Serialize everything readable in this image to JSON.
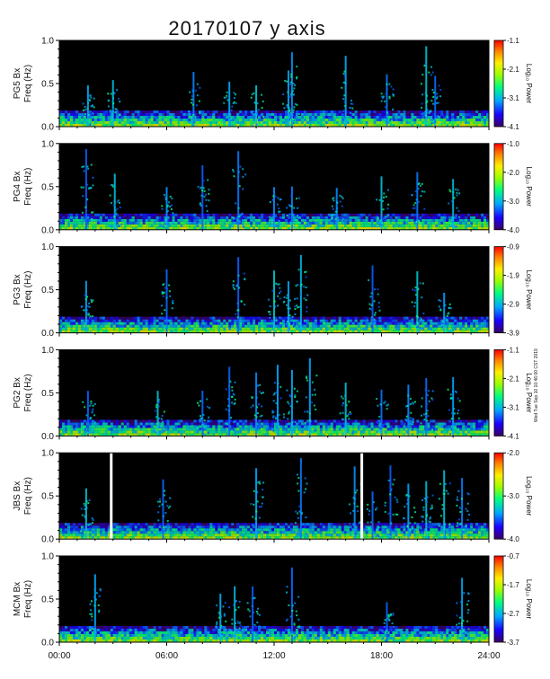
{
  "title": "20170107 y axis",
  "timestamp_note": "Wed Tue Sep 10 10:46:00 CST 2019",
  "colors": {
    "background": "#000000",
    "colormap": [
      "#3a0060",
      "#1a00ff",
      "#00a8ff",
      "#00ff80",
      "#9aff00",
      "#ffee00",
      "#ff8800",
      "#ff0000"
    ]
  },
  "chart_data": [
    {
      "type": "heatmap",
      "station": "PG5",
      "ylabel_top": "PG5  Bx",
      "ylabel_bottom": "Freq (Hz)",
      "y_ticks": [
        "0.0",
        "0.5",
        "1.0"
      ],
      "ylim": [
        0,
        1.0
      ],
      "colorbar": {
        "label": "Log₁₀ Power",
        "ticks": [
          "-1.1",
          "-2.1",
          "-3.1",
          "-4.1"
        ],
        "range": [
          -4.1,
          -1.1
        ]
      },
      "bursts": [
        1.6,
        3.0,
        7.5,
        9.5,
        11.0,
        12.8,
        13.0,
        16.0,
        18.3,
        20.5,
        21.0
      ],
      "gaps": []
    },
    {
      "type": "heatmap",
      "station": "PG4",
      "ylabel_top": "PG4  Bx",
      "ylabel_bottom": "Freq (Hz)",
      "y_ticks": [
        "0.0",
        "0.5",
        "1.0"
      ],
      "ylim": [
        0,
        1.0
      ],
      "colorbar": {
        "label": "Log₁₀ Power",
        "ticks": [
          "-1.0",
          "-2.0",
          "-3.0",
          "-4.0"
        ],
        "range": [
          -4.0,
          -1.0
        ]
      },
      "bursts": [
        1.5,
        3.1,
        6.0,
        8.0,
        10.0,
        12.0,
        13.0,
        15.5,
        18.0,
        20.0,
        22.0
      ],
      "gaps": []
    },
    {
      "type": "heatmap",
      "station": "PG3",
      "ylabel_top": "PG3  Bx",
      "ylabel_bottom": "Freq (Hz)",
      "y_ticks": [
        "0.0",
        "0.5",
        "1.0"
      ],
      "ylim": [
        0,
        1.0
      ],
      "colorbar": {
        "label": "Log₁₀ Power",
        "ticks": [
          "-0.9",
          "-1.9",
          "-2.9",
          "-3.9"
        ],
        "range": [
          -3.9,
          -0.9
        ]
      },
      "bursts": [
        1.5,
        6.0,
        10.0,
        12.0,
        12.8,
        13.5,
        17.5,
        20.0,
        21.5
      ],
      "gaps": []
    },
    {
      "type": "heatmap",
      "station": "PG2",
      "ylabel_top": "PG2  Bx",
      "ylabel_bottom": "Freq (Hz)",
      "y_ticks": [
        "0.0",
        "0.5",
        "1.0"
      ],
      "ylim": [
        0,
        1.0
      ],
      "colorbar": {
        "label": "Log₁₀ Power",
        "ticks": [
          "-1.1",
          "-2.1",
          "-3.1",
          "-4.1"
        ],
        "range": [
          -4.1,
          -1.1
        ]
      },
      "bursts": [
        1.6,
        5.5,
        8.0,
        9.5,
        11.0,
        12.2,
        13.0,
        14.0,
        16.0,
        18.0,
        19.5,
        20.5,
        22.0
      ],
      "gaps": []
    },
    {
      "type": "heatmap",
      "station": "JBS",
      "ylabel_top": "JBS  Bx",
      "ylabel_bottom": "Freq (Hz)",
      "y_ticks": [
        "0.0",
        "0.5",
        "1.0"
      ],
      "ylim": [
        0,
        1.0
      ],
      "colorbar": {
        "label": "Log₁₀ Power",
        "ticks": [
          "-2.0",
          "-3.0",
          "-4.0"
        ],
        "range": [
          -4.0,
          -2.0
        ]
      },
      "bursts": [
        1.5,
        5.8,
        11.0,
        13.5,
        16.5,
        17.5,
        18.5,
        19.5,
        20.5,
        21.5,
        22.5
      ],
      "gaps": [
        2.9,
        16.9
      ]
    },
    {
      "type": "heatmap",
      "station": "MCM",
      "ylabel_top": "MCM  Bx",
      "ylabel_bottom": "Freq (Hz)",
      "y_ticks": [
        "0.0",
        "0.5",
        "1.0"
      ],
      "ylim": [
        0,
        1.0
      ],
      "colorbar": {
        "label": "Log₁₀ Power",
        "ticks": [
          "-0.7",
          "-1.7",
          "-2.7",
          "-3.7"
        ],
        "range": [
          -3.7,
          -0.7
        ]
      },
      "bursts": [
        2.0,
        9.0,
        9.8,
        10.8,
        13.0,
        18.3,
        22.5
      ],
      "gaps": []
    }
  ],
  "x_axis": {
    "ticks": [
      "00:00",
      "06:00",
      "12:00",
      "18:00",
      "24:00"
    ],
    "xlim": [
      0,
      24
    ]
  }
}
